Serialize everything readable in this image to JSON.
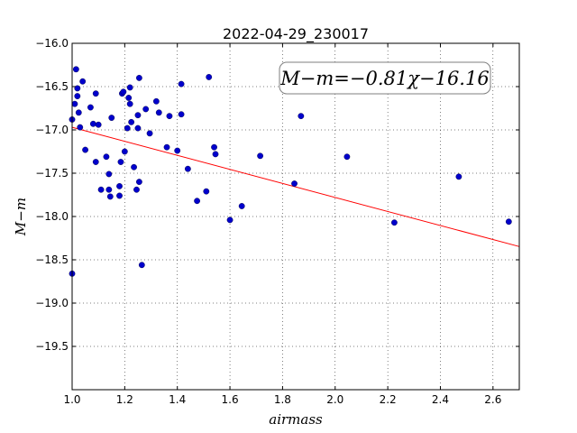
{
  "chart_data": {
    "type": "scatter",
    "title": "2022-04-29_230017",
    "xlabel": "airmass",
    "ylabel": "M−m",
    "xlim": [
      1.0,
      2.7
    ],
    "ylim": [
      -16.0,
      -20.0
    ],
    "x_ticks": [
      1.0,
      1.2,
      1.4,
      1.6,
      1.8,
      2.0,
      2.2,
      2.4,
      2.6
    ],
    "x_tick_labels": [
      "1.0",
      "1.2",
      "1.4",
      "1.6",
      "1.8",
      "2.0",
      "2.2",
      "2.4",
      "2.6"
    ],
    "y_ticks": [
      -16.0,
      -16.5,
      -17.0,
      -17.5,
      -18.0,
      -18.5,
      -19.0,
      -19.5
    ],
    "y_tick_labels": [
      "−16.0",
      "−16.5",
      "−17.0",
      "−17.5",
      "−18.0",
      "−18.5",
      "−19.0",
      "−19.5"
    ],
    "grid": true,
    "annotation": "M−m=−0.81χ−16.16",
    "fit": {
      "slope": -0.81,
      "intercept": -16.16,
      "color": "#ff0000"
    },
    "point_color": "#0000cc",
    "points": [
      [
        1.0,
        -18.66
      ],
      [
        1.0,
        -16.88
      ],
      [
        1.01,
        -16.7
      ],
      [
        1.015,
        -16.3
      ],
      [
        1.02,
        -16.52
      ],
      [
        1.02,
        -16.61
      ],
      [
        1.025,
        -16.8
      ],
      [
        1.03,
        -16.97
      ],
      [
        1.04,
        -16.44
      ],
      [
        1.05,
        -17.23
      ],
      [
        1.07,
        -16.74
      ],
      [
        1.08,
        -16.93
      ],
      [
        1.09,
        -16.58
      ],
      [
        1.09,
        -17.37
      ],
      [
        1.1,
        -16.94
      ],
      [
        1.11,
        -17.69
      ],
      [
        1.13,
        -17.31
      ],
      [
        1.14,
        -17.51
      ],
      [
        1.14,
        -17.69
      ],
      [
        1.145,
        -17.77
      ],
      [
        1.15,
        -16.86
      ],
      [
        1.18,
        -17.65
      ],
      [
        1.18,
        -17.76
      ],
      [
        1.185,
        -17.37
      ],
      [
        1.19,
        -16.58
      ],
      [
        1.195,
        -16.56
      ],
      [
        1.2,
        -17.25
      ],
      [
        1.21,
        -16.98
      ],
      [
        1.215,
        -16.63
      ],
      [
        1.22,
        -16.7
      ],
      [
        1.22,
        -16.51
      ],
      [
        1.225,
        -16.91
      ],
      [
        1.235,
        -17.43
      ],
      [
        1.245,
        -17.69
      ],
      [
        1.25,
        -16.83
      ],
      [
        1.25,
        -16.98
      ],
      [
        1.255,
        -17.6
      ],
      [
        1.255,
        -16.4
      ],
      [
        1.265,
        -18.56
      ],
      [
        1.28,
        -16.76
      ],
      [
        1.295,
        -17.04
      ],
      [
        1.32,
        -16.67
      ],
      [
        1.33,
        -16.8
      ],
      [
        1.36,
        -17.2
      ],
      [
        1.37,
        -16.84
      ],
      [
        1.4,
        -17.24
      ],
      [
        1.415,
        -16.47
      ],
      [
        1.415,
        -16.82
      ],
      [
        1.44,
        -17.45
      ],
      [
        1.475,
        -17.82
      ],
      [
        1.51,
        -17.71
      ],
      [
        1.52,
        -16.39
      ],
      [
        1.54,
        -17.2
      ],
      [
        1.545,
        -17.28
      ],
      [
        1.6,
        -18.04
      ],
      [
        1.645,
        -17.88
      ],
      [
        1.715,
        -17.3
      ],
      [
        1.845,
        -17.62
      ],
      [
        1.87,
        -16.84
      ],
      [
        2.045,
        -17.31
      ],
      [
        2.225,
        -18.07
      ],
      [
        2.47,
        -17.54
      ],
      [
        2.66,
        -18.06
      ]
    ]
  }
}
